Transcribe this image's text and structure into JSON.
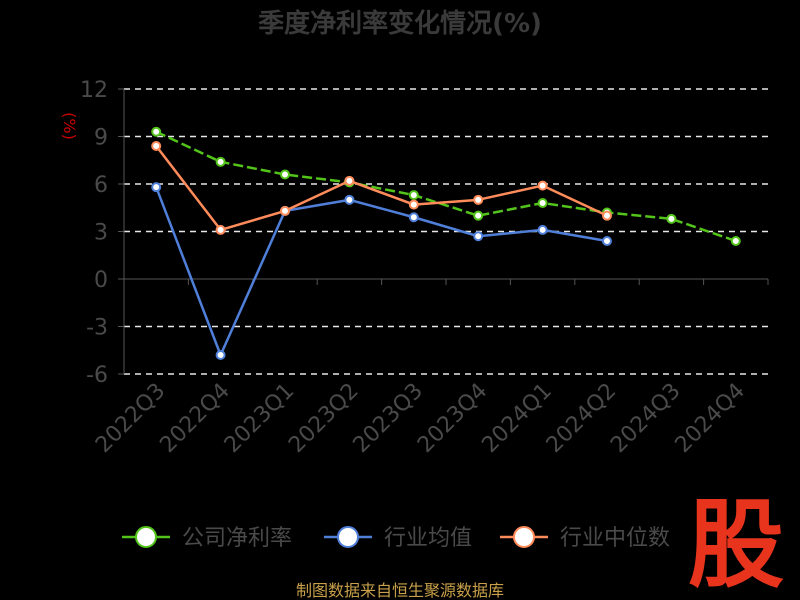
{
  "chart_data": {
    "type": "line",
    "title": "季度净利率变化情况(%)",
    "ylabel": "(%)",
    "categories": [
      "2022Q3",
      "2022Q4",
      "2023Q1",
      "2023Q2",
      "2023Q3",
      "2023Q4",
      "2024Q1",
      "2024Q2",
      "2024Q3",
      "2024Q4"
    ],
    "ylim": [
      -6,
      12
    ],
    "yticks": [
      12,
      9,
      6,
      3,
      0,
      -3,
      -6
    ],
    "grid": true,
    "legend_position": "bottom",
    "series": [
      {
        "name": "公司净利率",
        "color": "#52c41a",
        "dashed": true,
        "values": [
          9.3,
          7.4,
          6.6,
          6.1,
          5.3,
          4.0,
          4.8,
          4.2,
          3.8,
          2.4
        ]
      },
      {
        "name": "行业均值",
        "color": "#4f7fd9",
        "dashed": false,
        "values": [
          5.8,
          -4.8,
          4.3,
          5.0,
          3.9,
          2.7,
          3.1,
          2.4,
          null,
          null
        ]
      },
      {
        "name": "行业中位数",
        "color": "#ff8c5a",
        "dashed": false,
        "values": [
          8.4,
          3.1,
          4.3,
          6.2,
          4.7,
          5.0,
          5.9,
          4.0,
          null,
          null
        ]
      }
    ]
  },
  "source": "制图数据来自恒生聚源数据库",
  "logo_text": "股"
}
